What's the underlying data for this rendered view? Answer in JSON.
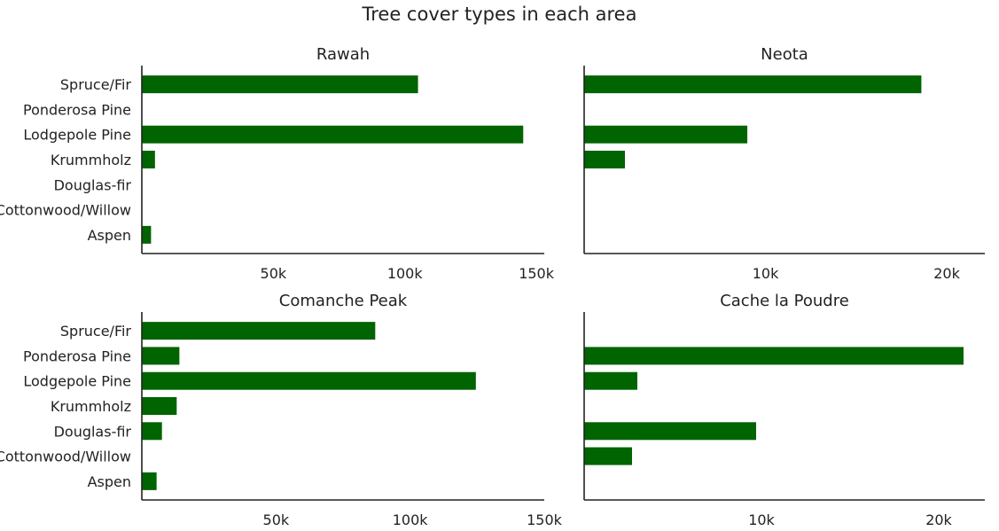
{
  "figure": {
    "title": "Tree cover types in each area",
    "bar_color": "#006400"
  },
  "chart_data": [
    {
      "type": "bar",
      "orientation": "horizontal",
      "title": "Rawah",
      "categories": [
        "Spruce/Fir",
        "Ponderosa Pine",
        "Lodgepole Pine",
        "Krummholz",
        "Douglas-fir",
        "Cottonwood/Willow",
        "Aspen"
      ],
      "values": [
        105000,
        0,
        145000,
        5000,
        0,
        0,
        3500
      ],
      "xlim": [
        0,
        153000
      ],
      "xticks": [
        50000,
        100000,
        150000
      ],
      "xtick_labels": [
        "50k",
        "100k",
        "150k"
      ],
      "xlabel": "",
      "ylabel": "",
      "grid": false
    },
    {
      "type": "bar",
      "orientation": "horizontal",
      "title": "Neota",
      "categories": [
        "Spruce/Fir",
        "Ponderosa Pine",
        "Lodgepole Pine",
        "Krummholz",
        "Douglas-fir",
        "Cottonwood/Willow",
        "Aspen"
      ],
      "values": [
        18600,
        0,
        9000,
        2250,
        0,
        0,
        0
      ],
      "xlim": [
        0,
        22100
      ],
      "xticks": [
        10000,
        20000
      ],
      "xtick_labels": [
        "10k",
        "20k"
      ],
      "xlabel": "",
      "ylabel": "",
      "grid": false
    },
    {
      "type": "bar",
      "orientation": "horizontal",
      "title": "Comanche Peak",
      "categories": [
        "Spruce/Fir",
        "Ponderosa Pine",
        "Lodgepole Pine",
        "Krummholz",
        "Douglas-fir",
        "Cottonwood/Willow",
        "Aspen"
      ],
      "values": [
        87000,
        14000,
        124500,
        13000,
        7500,
        0,
        5500
      ],
      "xlim": [
        0,
        150000
      ],
      "xticks": [
        50000,
        100000,
        150000
      ],
      "xtick_labels": [
        "50k",
        "100k",
        "150k"
      ],
      "xlabel": "",
      "ylabel": "",
      "grid": false
    },
    {
      "type": "bar",
      "orientation": "horizontal",
      "title": "Cache la Poudre",
      "categories": [
        "Spruce/Fir",
        "Ponderosa Pine",
        "Lodgepole Pine",
        "Krummholz",
        "Douglas-fir",
        "Cottonwood/Willow",
        "Aspen"
      ],
      "values": [
        0,
        21400,
        3000,
        0,
        9700,
        2700,
        0
      ],
      "xlim": [
        0,
        22600
      ],
      "xticks": [
        10000,
        20000
      ],
      "xtick_labels": [
        "10k",
        "20k"
      ],
      "xlabel": "",
      "ylabel": "",
      "grid": false
    }
  ]
}
